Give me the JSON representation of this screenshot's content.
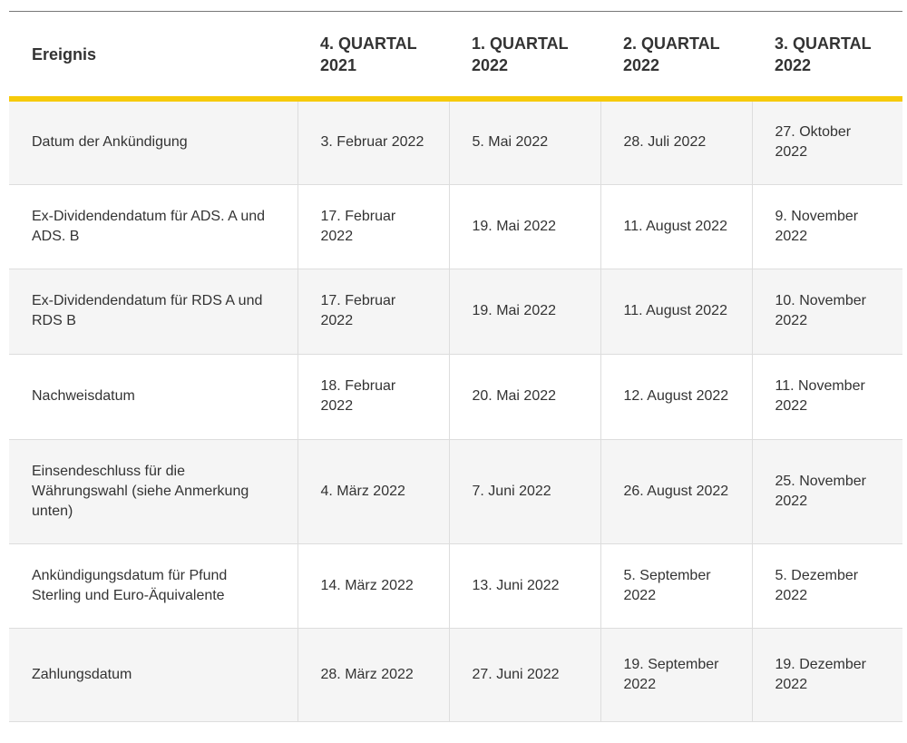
{
  "table": {
    "headers": [
      "Ereignis",
      "4. QUARTAL 2021",
      "1. QUARTAL 2022",
      "2. QUARTAL 2022",
      "3. QUARTAL 2022"
    ],
    "rows": [
      [
        "Datum der Ankündigung",
        "3. Februar 2022",
        "5. Mai 2022",
        "28. Juli 2022",
        "27. Oktober 2022"
      ],
      [
        "Ex-Dividendendatum für ADS. A und ADS. B",
        "17. Februar 2022",
        "19. Mai 2022",
        "11. August 2022",
        "9. November 2022"
      ],
      [
        "Ex-Dividendendatum für RDS A und RDS B",
        "17. Februar 2022",
        "19. Mai 2022",
        "11. August 2022",
        "10. November 2022"
      ],
      [
        "Nachweisdatum",
        "18. Februar 2022",
        "20. Mai 2022",
        "12. August 2022",
        "11. November 2022"
      ],
      [
        "Einsendeschluss für die Währungswahl (siehe Anmerkung unten)",
        "4. März 2022",
        "7. Juni 2022",
        "26. August 2022",
        "25. November 2022"
      ],
      [
        "Ankündigungsdatum für Pfund Sterling und Euro-Äquivalente",
        "14. März 2022",
        "13. Juni 2022",
        "5. September 2022",
        "5. Dezember 2022"
      ],
      [
        "Zahlungsdatum",
        "28. März 2022",
        "27. Juni 2022",
        "19. September 2022",
        "19. Dezember 2022"
      ]
    ]
  },
  "colors": {
    "accent": "#f6ca0a",
    "row_alt": "#f5f5f5",
    "text": "#333333"
  }
}
